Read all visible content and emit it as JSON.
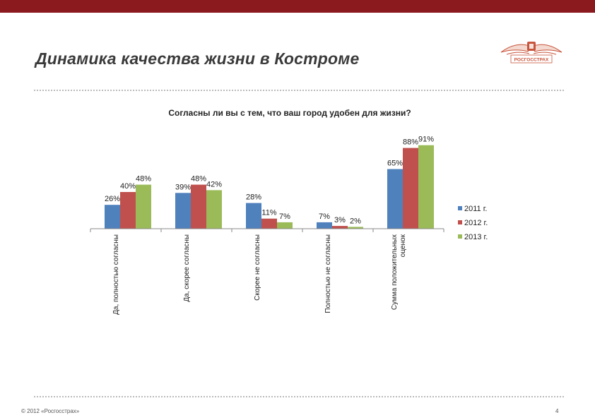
{
  "slide": {
    "title": "Динамика качества жизни в Костроме",
    "logo_text": "РОСГОССТРАХ",
    "footer_copyright": "© 2012 «Росгосстрах»",
    "page_number": "4"
  },
  "colors": {
    "top_bar": "#8b1a1f",
    "logo": "#c8553d",
    "series": [
      "#4f81bd",
      "#c0504d",
      "#9bbb59"
    ]
  },
  "chart_data": {
    "type": "bar",
    "title": "Согласны ли вы с тем, что ваш город удобен для жизни?",
    "categories": [
      [
        "Да, полностью согласны"
      ],
      [
        "Да, скорее согласны"
      ],
      [
        "Скорее не согласны"
      ],
      [
        "Полностью не согласны"
      ],
      [
        "Сумма положительных",
        "оценок"
      ]
    ],
    "series": [
      {
        "name": "2011 г.",
        "values": [
          26,
          39,
          28,
          7,
          65
        ],
        "labels": [
          "26%",
          "39%",
          "28%",
          "7%",
          "65%"
        ]
      },
      {
        "name": "2012 г.",
        "values": [
          40,
          48,
          11,
          3,
          88
        ],
        "labels": [
          "40%",
          "48%",
          "11%",
          "3%",
          "88%"
        ]
      },
      {
        "name": "2013 г.",
        "values": [
          48,
          42,
          7,
          2,
          91
        ],
        "labels": [
          "48%",
          "42%",
          "7%",
          "2%",
          "91%"
        ]
      }
    ],
    "ylim": [
      0,
      100
    ],
    "grid": false,
    "legend": "right"
  }
}
